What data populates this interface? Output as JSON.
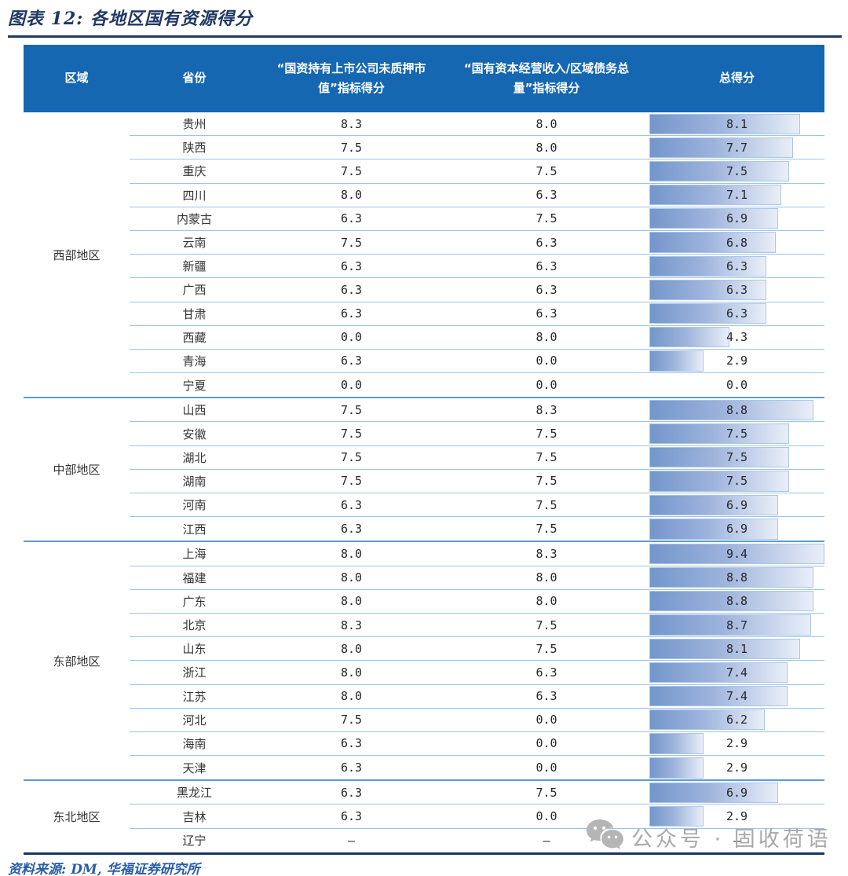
{
  "figure": {
    "title": "图表 12: 各地区国有资源得分",
    "source": "资料来源: DM, 华福证券研究所"
  },
  "watermark": {
    "text": "公众号 · 固收荷语",
    "icon": "wechat-icon",
    "color": "#a9a9a9"
  },
  "colors": {
    "header_bg": "#1567b2",
    "title_navy": "#1f3864",
    "table_bottom_border": "#17365d",
    "row_separator": "#9dc3e6",
    "region_boundary": "#5b9bd5",
    "bar_gradient_start": "#7496cc",
    "bar_gradient_end": "#e9eef8",
    "bar_border": "#a9c6e8"
  },
  "chart_data": {
    "type": "table",
    "title": "图表 12: 各地区国有资源得分",
    "columns": [
      "区域",
      "省份",
      "“国资持有上市公司未质押市值”指标得分",
      "“国有资本经营收入/区域债务总量”指标得分",
      "总得分"
    ],
    "bar_column": "总得分",
    "bar_max": 9.4,
    "groups": [
      {
        "region": "西部地区",
        "rows": [
          {
            "province": "贵州",
            "score1": "8.3",
            "score2": "8.0",
            "total": "8.1"
          },
          {
            "province": "陕西",
            "score1": "7.5",
            "score2": "8.0",
            "total": "7.7"
          },
          {
            "province": "重庆",
            "score1": "7.5",
            "score2": "7.5",
            "total": "7.5"
          },
          {
            "province": "四川",
            "score1": "8.0",
            "score2": "6.3",
            "total": "7.1"
          },
          {
            "province": "内蒙古",
            "score1": "6.3",
            "score2": "7.5",
            "total": "6.9"
          },
          {
            "province": "云南",
            "score1": "7.5",
            "score2": "6.3",
            "total": "6.8"
          },
          {
            "province": "新疆",
            "score1": "6.3",
            "score2": "6.3",
            "total": "6.3"
          },
          {
            "province": "广西",
            "score1": "6.3",
            "score2": "6.3",
            "total": "6.3"
          },
          {
            "province": "甘肃",
            "score1": "6.3",
            "score2": "6.3",
            "total": "6.3"
          },
          {
            "province": "西藏",
            "score1": "0.0",
            "score2": "8.0",
            "total": "4.3"
          },
          {
            "province": "青海",
            "score1": "6.3",
            "score2": "0.0",
            "total": "2.9"
          },
          {
            "province": "宁夏",
            "score1": "0.0",
            "score2": "0.0",
            "total": "0.0"
          }
        ]
      },
      {
        "region": "中部地区",
        "rows": [
          {
            "province": "山西",
            "score1": "7.5",
            "score2": "8.3",
            "total": "8.8"
          },
          {
            "province": "安徽",
            "score1": "7.5",
            "score2": "7.5",
            "total": "7.5"
          },
          {
            "province": "湖北",
            "score1": "7.5",
            "score2": "7.5",
            "total": "7.5"
          },
          {
            "province": "湖南",
            "score1": "7.5",
            "score2": "7.5",
            "total": "7.5"
          },
          {
            "province": "河南",
            "score1": "6.3",
            "score2": "7.5",
            "total": "6.9"
          },
          {
            "province": "江西",
            "score1": "6.3",
            "score2": "7.5",
            "total": "6.9"
          }
        ]
      },
      {
        "region": "东部地区",
        "rows": [
          {
            "province": "上海",
            "score1": "8.0",
            "score2": "8.3",
            "total": "9.4"
          },
          {
            "province": "福建",
            "score1": "8.0",
            "score2": "8.0",
            "total": "8.8"
          },
          {
            "province": "广东",
            "score1": "8.0",
            "score2": "8.0",
            "total": "8.8"
          },
          {
            "province": "北京",
            "score1": "8.3",
            "score2": "7.5",
            "total": "8.7"
          },
          {
            "province": "山东",
            "score1": "8.0",
            "score2": "7.5",
            "total": "8.1"
          },
          {
            "province": "浙江",
            "score1": "8.0",
            "score2": "6.3",
            "total": "7.4"
          },
          {
            "province": "江苏",
            "score1": "8.0",
            "score2": "6.3",
            "total": "7.4"
          },
          {
            "province": "河北",
            "score1": "7.5",
            "score2": "0.0",
            "total": "6.2"
          },
          {
            "province": "海南",
            "score1": "6.3",
            "score2": "0.0",
            "total": "2.9"
          },
          {
            "province": "天津",
            "score1": "6.3",
            "score2": "0.0",
            "total": "2.9"
          }
        ]
      },
      {
        "region": "东北地区",
        "rows": [
          {
            "province": "黑龙江",
            "score1": "6.3",
            "score2": "7.5",
            "total": "6.9"
          },
          {
            "province": "吉林",
            "score1": "6.3",
            "score2": "0.0",
            "total": "2.9"
          },
          {
            "province": "辽宁",
            "score1": "–",
            "score2": "–",
            "total": "–"
          }
        ]
      }
    ]
  }
}
